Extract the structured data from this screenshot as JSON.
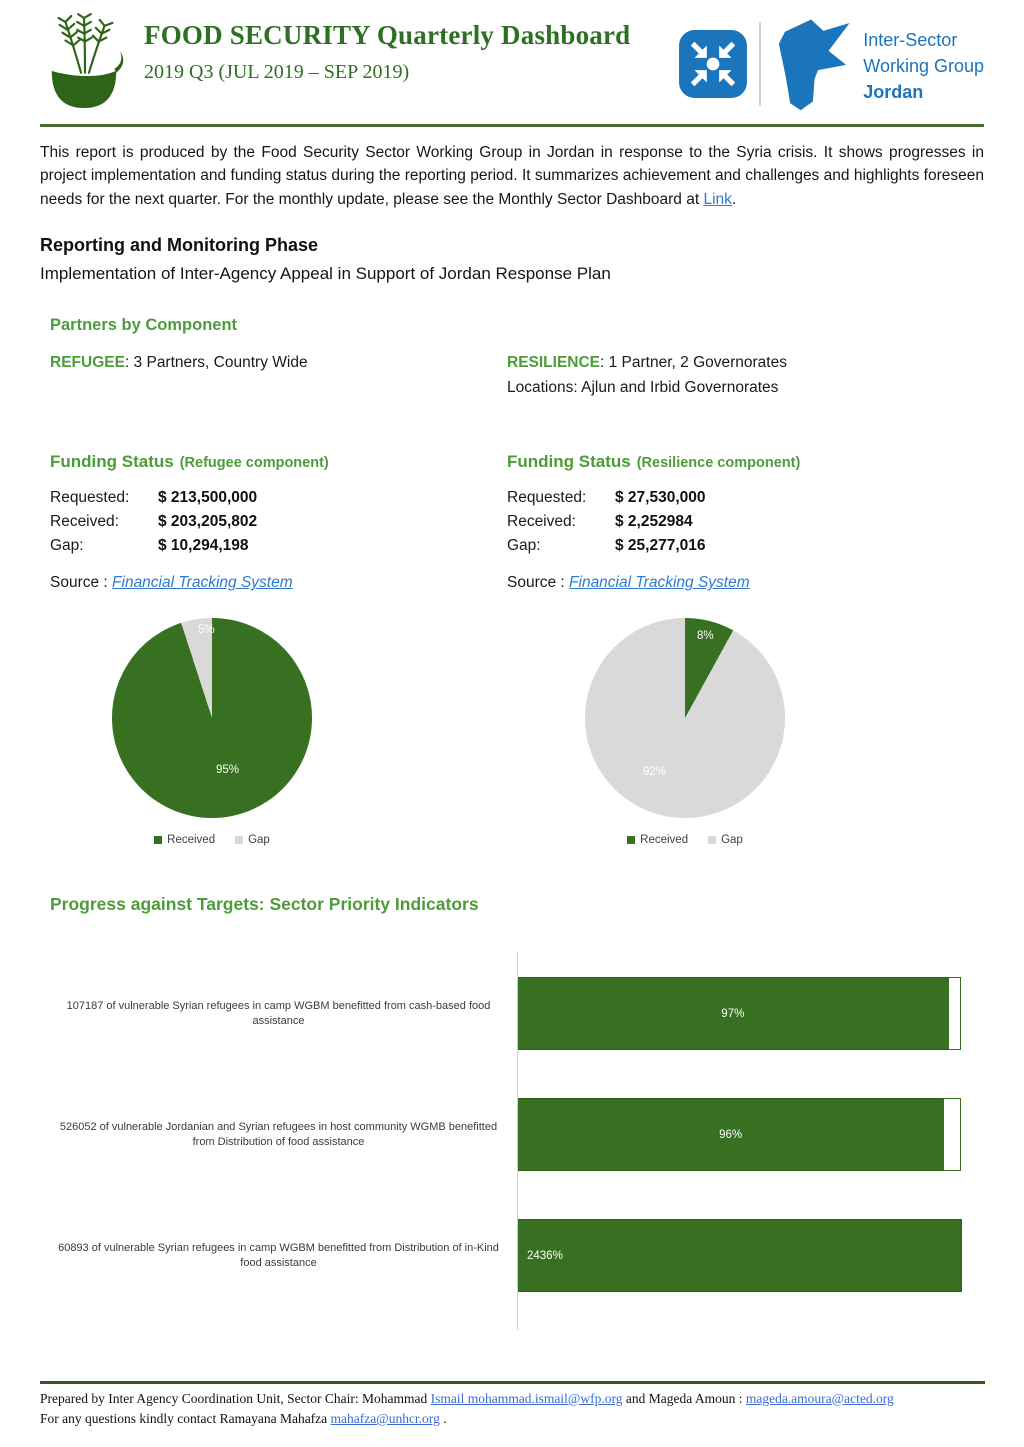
{
  "header": {
    "title": "FOOD SECURITY Quarterly Dashboard",
    "subtitle": "2019 Q3 (JUL 2019 – SEP 2019)",
    "org": {
      "line1": "Inter-Sector",
      "line2": "Working Group",
      "line3": "Jordan"
    }
  },
  "intro": {
    "text": "This report is produced by the Food Security Sector Working Group in Jordan in response to the Syria crisis. It shows progresses in project implementation and funding status during the reporting period. It summarizes achievement and challenges and highlights foreseen needs for the next quarter. For the monthly update, please see the Monthly Sector Dashboard at ",
    "link_label": "Link",
    "after_link": "."
  },
  "reporting": {
    "heading": "Reporting and Monitoring Phase",
    "subheading": "Implementation of Inter-Agency Appeal in Support of Jordan Response Plan"
  },
  "partners": {
    "heading": "Partners by Component",
    "refugee": {
      "label": "REFUGEE",
      "text": ": 3 Partners, Country Wide"
    },
    "resilience": {
      "label": "RESILIENCE",
      "text": ": 1 Partner, 2 Governorates",
      "locations": "Locations: Ajlun and Irbid Governorates"
    }
  },
  "funding_refugee": {
    "heading": "Funding Status",
    "component": "(Refugee component)",
    "requested_label": "Requested:",
    "requested_value": "$ 213,500,000",
    "received_label": "Received:",
    "received_value": "$ 203,205,802",
    "gap_label": "Gap:",
    "gap_value": "$ 10,294,198",
    "source_label": "Source : ",
    "source_link": "Financial Tracking System"
  },
  "funding_resilience": {
    "heading": "Funding Status",
    "component": "(Resilience component)",
    "requested_label": "Requested:",
    "requested_value": "$ 27,530,000",
    "received_label": "Received:",
    "received_value": "$ 2,252984",
    "gap_label": "Gap:",
    "gap_value": "$ 25,277,016",
    "source_label": "Source : ",
    "source_link": "Financial Tracking System"
  },
  "progress_heading": "Progress against Targets: Sector Priority Indicators",
  "footer": {
    "line1_before": "Prepared by Inter Agency Coordination Unit, Sector Chair: Mohammad ",
    "line1_link1": "Ismail mohammad.ismail@wfp.org",
    "line1_middle": " and Mageda Amoun : ",
    "line1_link2": "mageda.amoura@acted.org",
    "line2_before": "For any questions kindly contact Ramayana Mahafza  ",
    "line2_link": "mahafza@unhcr.org",
    "line2_after": " ."
  },
  "colors": {
    "dark_green": "#377021",
    "heading_green": "#4C9C3A",
    "title_green": "#2E7023",
    "link_blue": "#2E7AD1",
    "iswg_blue": "#1B75BC",
    "gray_slice": "#D9D9D9",
    "header_rule_green": "#4A6B2F",
    "footer_rule_green": "#375623"
  },
  "chart_data": [
    {
      "type": "pie",
      "title": "Funding Status (Refugee component)",
      "labels": [
        "Received",
        "Gap"
      ],
      "values": [
        95,
        5
      ],
      "value_labels": [
        "95%",
        "5%"
      ],
      "colors": [
        "#377021",
        "#D9D9D9"
      ],
      "legend": [
        "Received",
        "Gap"
      ],
      "legend_position": "bottom"
    },
    {
      "type": "pie",
      "title": "Funding Status (Resilience component)",
      "labels": [
        "Received",
        "Gap"
      ],
      "values": [
        8,
        92
      ],
      "value_labels": [
        "8%",
        "92%"
      ],
      "colors": [
        "#377021",
        "#D9D9D9"
      ],
      "legend": [
        "Received",
        "Gap"
      ],
      "legend_position": "bottom"
    },
    {
      "type": "bar",
      "title": "Progress against Targets: Sector Priority Indicators",
      "orientation": "horizontal",
      "categories": [
        "107187 of vulnerable Syrian refugees in camp WGBM  benefitted from cash-based food assistance",
        "526052  of vulnerable Jordanian and Syrian refugees in host community WGMB benefitted from Distribution of food assistance",
        "60893 of vulnerable Syrian refugees in camp WGBM  benefitted from  Distribution of in-Kind food assistance"
      ],
      "values": [
        97,
        96,
        2436
      ],
      "value_labels": [
        "97%",
        "96%",
        "2436%"
      ],
      "bar_color": "#377021",
      "axis_max_display": 100,
      "grid": false
    }
  ]
}
